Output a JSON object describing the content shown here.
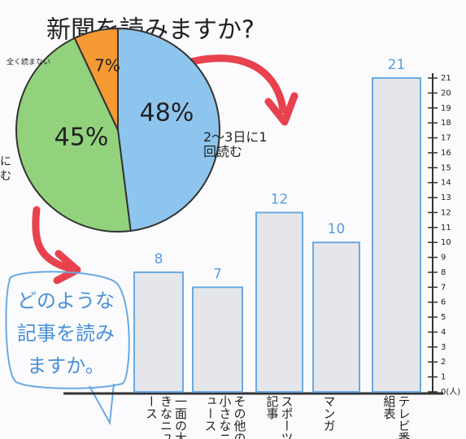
{
  "chart_data": [
    {
      "type": "pie",
      "title": "新聞を読みますか?",
      "categories": [
        "2〜3日に1回読む",
        "聞に読む",
        "全く読まない"
      ],
      "values": [
        48,
        45,
        7
      ],
      "value_labels": [
        "48%",
        "45%",
        "7%"
      ],
      "colors": [
        "#8ec5ee",
        "#93d27c",
        "#f59a32"
      ]
    },
    {
      "type": "bar",
      "annotation": "どのような記事を読みますか。",
      "categories": [
        "一面の大きなニュース",
        "その他の小さなニュース",
        "スポーツ記事",
        "マンガ",
        "テレビ番組表"
      ],
      "values": [
        8,
        7,
        12,
        10,
        21
      ],
      "color": "#e4e6ea",
      "ylim": [
        0,
        21
      ],
      "yticks": [
        {
          "value": 0,
          "label": "0(人)"
        },
        1,
        2,
        3,
        4,
        5,
        6,
        7,
        8,
        9,
        10,
        11,
        12,
        13,
        14,
        15,
        16,
        17,
        18,
        19,
        20,
        21
      ]
    }
  ]
}
